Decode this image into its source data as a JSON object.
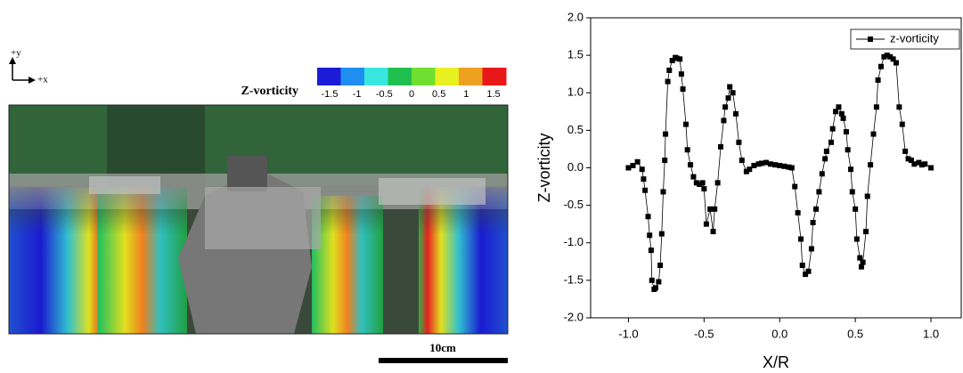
{
  "image_panel": {
    "axis_labels": [
      "+y",
      "+x"
    ],
    "colorbar": {
      "title": "Z-vorticity",
      "ticks": [
        -1.5,
        -1,
        -0.5,
        0,
        0.5,
        1,
        1.5
      ],
      "colors": [
        "#1c1cd8",
        "#1e8ff0",
        "#38e8e0",
        "#20c050",
        "#70e030",
        "#e8f020",
        "#f0a020",
        "#e81818"
      ]
    },
    "scale_bar": "10cm"
  },
  "chart_data": {
    "type": "line",
    "x_label": "X/R",
    "y_label": "Z-vorticity",
    "x": [
      -1.0,
      -0.97,
      -0.94,
      -0.91,
      -0.9,
      -0.89,
      -0.87,
      -0.86,
      -0.85,
      -0.845,
      -0.83,
      -0.82,
      -0.8,
      -0.79,
      -0.78,
      -0.77,
      -0.76,
      -0.755,
      -0.74,
      -0.73,
      -0.71,
      -0.69,
      -0.68,
      -0.66,
      -0.65,
      -0.64,
      -0.62,
      -0.61,
      -0.59,
      -0.57,
      -0.55,
      -0.53,
      -0.51,
      -0.5,
      -0.485,
      -0.46,
      -0.44,
      -0.43,
      -0.41,
      -0.39,
      -0.37,
      -0.36,
      -0.34,
      -0.33,
      -0.31,
      -0.29,
      -0.27,
      -0.25,
      -0.22,
      -0.2,
      -0.17,
      -0.14,
      -0.12,
      -0.09,
      -0.06,
      -0.03,
      0.0,
      0.03,
      0.06,
      0.08,
      0.1,
      0.12,
      0.14,
      0.15,
      0.17,
      0.19,
      0.21,
      0.22,
      0.24,
      0.26,
      0.28,
      0.3,
      0.31,
      0.34,
      0.35,
      0.37,
      0.39,
      0.41,
      0.42,
      0.44,
      0.45,
      0.47,
      0.48,
      0.5,
      0.51,
      0.53,
      0.54,
      0.55,
      0.57,
      0.58,
      0.6,
      0.62,
      0.64,
      0.65,
      0.67,
      0.69,
      0.71,
      0.73,
      0.75,
      0.77,
      0.79,
      0.81,
      0.83,
      0.85,
      0.87,
      0.89,
      0.92,
      0.94,
      0.96,
      1.0
    ],
    "series": [
      {
        "name": "z-vorticity",
        "color": "#000000",
        "values": [
          0.0,
          0.03,
          0.08,
          -0.02,
          -0.15,
          -0.3,
          -0.65,
          -0.9,
          -1.1,
          -1.5,
          -1.62,
          -1.6,
          -1.52,
          -1.3,
          -0.88,
          -0.32,
          0.1,
          0.45,
          1.15,
          1.3,
          1.43,
          1.47,
          1.46,
          1.45,
          1.25,
          1.05,
          0.58,
          0.24,
          0.04,
          -0.12,
          -0.2,
          -0.22,
          -0.2,
          -0.28,
          -0.75,
          -0.55,
          -0.85,
          -0.55,
          -0.2,
          0.28,
          0.63,
          0.81,
          0.93,
          1.08,
          1.0,
          0.72,
          0.34,
          0.1,
          -0.05,
          -0.02,
          0.03,
          0.05,
          0.06,
          0.07,
          0.05,
          0.04,
          0.03,
          0.02,
          0.01,
          0.0,
          -0.25,
          -0.6,
          -0.95,
          -1.3,
          -1.42,
          -1.38,
          -1.08,
          -0.73,
          -0.55,
          -0.32,
          -0.08,
          0.12,
          0.22,
          0.34,
          0.52,
          0.75,
          0.81,
          0.72,
          0.66,
          0.48,
          0.24,
          -0.02,
          -0.32,
          -0.55,
          -0.95,
          -1.2,
          -1.32,
          -1.26,
          -0.85,
          -0.38,
          0.04,
          0.45,
          0.81,
          1.17,
          1.35,
          1.48,
          1.5,
          1.48,
          1.45,
          1.4,
          0.81,
          0.58,
          0.22,
          0.12,
          0.1,
          0.05,
          0.07,
          0.04,
          0.05,
          0.0
        ]
      }
    ],
    "xlim": [
      -1.25,
      1.2
    ],
    "ylim": [
      -2,
      2
    ],
    "xticks": [
      {
        "value": -1,
        "label": "-1.0"
      },
      -0.5,
      {
        "value": 0,
        "label": "0.0"
      },
      0.5,
      {
        "value": 1,
        "label": "1.0"
      }
    ],
    "yticks": [
      {
        "value": -2,
        "label": "-2.0"
      },
      -1.5,
      {
        "value": -1,
        "label": "-1.0"
      },
      -0.5,
      {
        "value": 0,
        "label": "0.0"
      },
      0.5,
      {
        "value": 1,
        "label": "1.0"
      },
      1.5,
      {
        "value": 2,
        "label": "2.0"
      }
    ],
    "grid": false,
    "legend": "upper right"
  }
}
